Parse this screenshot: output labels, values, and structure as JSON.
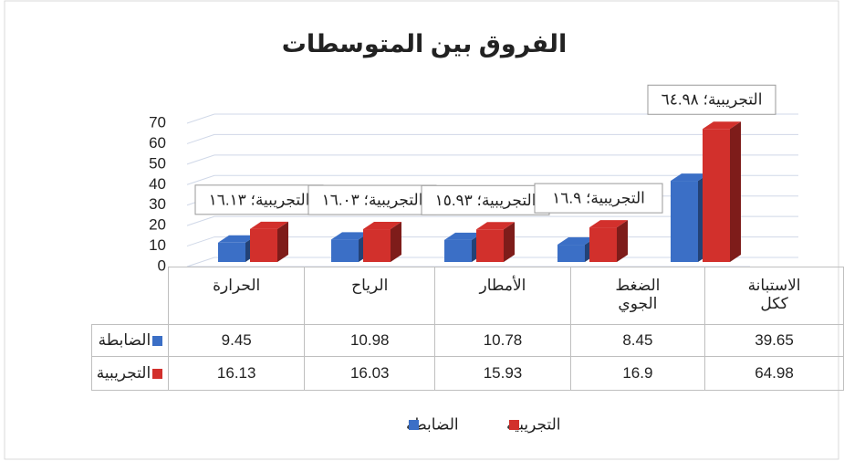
{
  "chart_data": {
    "type": "bar3d",
    "title": "الفروق بين المتوسطات",
    "categories": [
      "الحرارة",
      "الرياح",
      "الأمطار",
      "الضغط الجوي",
      "الاستبانة ككل"
    ],
    "series": [
      {
        "name": "الضابطة",
        "color": "#3b6fc6",
        "values": [
          9.45,
          10.98,
          10.78,
          8.45,
          39.65
        ]
      },
      {
        "name": "التجريبية",
        "color": "#d2302c",
        "values": [
          16.13,
          16.03,
          15.93,
          16.9,
          64.98
        ],
        "value_labels": [
          "التجريبية؛ ١٦.١٣",
          "التجريبية؛ ١٦.٠٣",
          "التجريبية؛ ١٥.٩٣",
          "التجريبية؛ ١٦.٩",
          "التجريبية؛ ٦٤.٩٨"
        ]
      }
    ],
    "ylim": [
      0,
      70
    ],
    "yticks": [
      0,
      10,
      20,
      30,
      40,
      50,
      60,
      70
    ],
    "grid": true,
    "legend": "bottom",
    "data_table": true
  }
}
